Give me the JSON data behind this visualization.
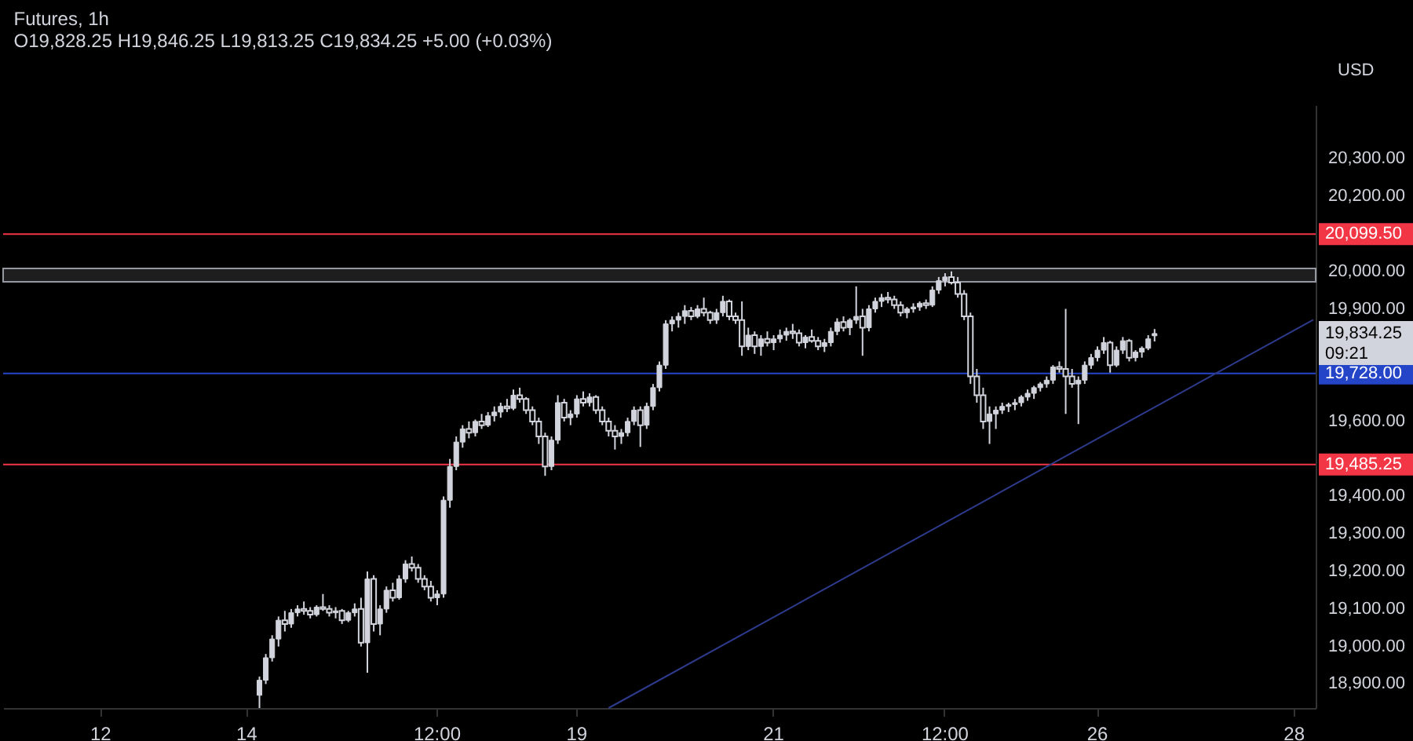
{
  "chart_data": {
    "type": "candlestick",
    "title": "Futures, 1h",
    "subtitle": "O19,828.25  H19,846.25  L19,813.25  C19,834.25  +5.00 (+0.03%)",
    "color": "#d1d4dc",
    "categories": [
      null,
      null,
      null,
      null,
      null,
      null,
      null,
      null,
      null,
      null,
      null,
      null,
      null,
      null,
      null,
      "12",
      null,
      null,
      null,
      null,
      null,
      null,
      null,
      null,
      null,
      null,
      null,
      null,
      null,
      null,
      null,
      null,
      null,
      null,
      null,
      null,
      null,
      null,
      "14",
      null,
      null,
      null,
      null,
      null,
      null,
      null,
      null,
      null,
      null,
      null,
      null,
      null,
      null,
      null,
      null,
      null,
      null,
      null,
      null,
      null,
      null,
      null,
      null,
      null,
      null,
      null,
      null,
      null,
      "12:00",
      null,
      null,
      null,
      null,
      null,
      null,
      null,
      null,
      null,
      null,
      null,
      null,
      null,
      null,
      null,
      null,
      null,
      null,
      null,
      null,
      null,
      "19",
      null,
      null,
      null,
      null,
      null,
      null,
      null,
      null,
      null,
      null,
      null,
      null,
      null,
      null,
      null,
      null,
      null,
      null,
      null,
      null,
      null,
      null,
      null,
      null,
      null,
      null,
      null,
      null,
      null,
      null,
      "21",
      null,
      null,
      null,
      null,
      null,
      null,
      null,
      null,
      null,
      null,
      null,
      null,
      null,
      null,
      null,
      null,
      null,
      null,
      null,
      null,
      null,
      null,
      null,
      null,
      null,
      null,
      "12:00",
      null,
      null,
      null,
      null,
      null,
      null,
      null,
      null,
      null,
      null,
      null,
      null,
      null,
      null,
      null,
      null,
      null,
      null,
      null,
      null,
      null,
      null,
      null,
      "26",
      null,
      null,
      null,
      null,
      null,
      null,
      null,
      null,
      null,
      null,
      null,
      null,
      null,
      null,
      null,
      null,
      null,
      null,
      null,
      null,
      null,
      null,
      null,
      null,
      null,
      null,
      null,
      null,
      null,
      null,
      "28",
      null,
      null,
      null
    ],
    "ohlc": [
      null,
      null,
      null,
      null,
      null,
      null,
      null,
      null,
      null,
      null,
      null,
      null,
      null,
      null,
      null,
      null,
      null,
      null,
      null,
      null,
      null,
      null,
      null,
      null,
      null,
      null,
      null,
      null,
      null,
      null,
      null,
      null,
      null,
      null,
      null,
      null,
      null,
      null,
      null,
      null,
      [
        18870,
        18920,
        18836,
        18910
      ],
      [
        18910,
        18980,
        18900,
        18970
      ],
      [
        18970,
        19030,
        18960,
        19020
      ],
      [
        19020,
        19080,
        19000,
        19070
      ],
      [
        19070,
        19095,
        19040,
        19060
      ],
      [
        19060,
        19100,
        19050,
        19090
      ],
      [
        19090,
        19110,
        19080,
        19100
      ],
      [
        19100,
        19120,
        19085,
        19095
      ],
      [
        19095,
        19105,
        19075,
        19085
      ],
      [
        19085,
        19110,
        19080,
        19105
      ],
      [
        19105,
        19140,
        19095,
        19100
      ],
      [
        19100,
        19110,
        19080,
        19090
      ],
      [
        19090,
        19105,
        19075,
        19095
      ],
      [
        19095,
        19100,
        19060,
        19070
      ],
      [
        19070,
        19095,
        19065,
        19090
      ],
      [
        19090,
        19115,
        19080,
        19100
      ],
      [
        19100,
        19130,
        19000,
        19010
      ],
      [
        19010,
        19200,
        18930,
        19180
      ],
      [
        19180,
        19190,
        19040,
        19060
      ],
      [
        19060,
        19110,
        19030,
        19100
      ],
      [
        19100,
        19160,
        19090,
        19150
      ],
      [
        19150,
        19170,
        19120,
        19130
      ],
      [
        19130,
        19190,
        19125,
        19180
      ],
      [
        19180,
        19230,
        19170,
        19220
      ],
      [
        19220,
        19240,
        19200,
        19210
      ],
      [
        19210,
        19220,
        19170,
        19180
      ],
      [
        19180,
        19190,
        19150,
        19160
      ],
      [
        19160,
        19175,
        19120,
        19130
      ],
      [
        19130,
        19150,
        19110,
        19140
      ],
      [
        19140,
        19400,
        19130,
        19390
      ],
      [
        19390,
        19500,
        19370,
        19480
      ],
      [
        19480,
        19560,
        19470,
        19545
      ],
      [
        19545,
        19590,
        19530,
        19580
      ],
      [
        19580,
        19600,
        19555,
        19570
      ],
      [
        19570,
        19605,
        19560,
        19600
      ],
      [
        19600,
        19620,
        19580,
        19590
      ],
      [
        19590,
        19625,
        19585,
        19615
      ],
      [
        19615,
        19640,
        19600,
        19625
      ],
      [
        19625,
        19650,
        19610,
        19640
      ],
      [
        19640,
        19660,
        19625,
        19635
      ],
      [
        19635,
        19685,
        19630,
        19670
      ],
      [
        19670,
        19690,
        19650,
        19660
      ],
      [
        19660,
        19665,
        19620,
        19630
      ],
      [
        19630,
        19640,
        19590,
        19600
      ],
      [
        19600,
        19610,
        19540,
        19560
      ],
      [
        19560,
        19570,
        19455,
        19480
      ],
      [
        19480,
        19560,
        19470,
        19550
      ],
      [
        19550,
        19670,
        19540,
        19650
      ],
      [
        19650,
        19660,
        19600,
        19610
      ],
      [
        19610,
        19630,
        19590,
        19620
      ],
      [
        19620,
        19670,
        19610,
        19660
      ],
      [
        19660,
        19680,
        19640,
        19650
      ],
      [
        19650,
        19675,
        19640,
        19665
      ],
      [
        19665,
        19670,
        19620,
        19630
      ],
      [
        19630,
        19640,
        19590,
        19600
      ],
      [
        19600,
        19610,
        19560,
        19575
      ],
      [
        19575,
        19590,
        19525,
        19560
      ],
      [
        19560,
        19580,
        19540,
        19570
      ],
      [
        19570,
        19610,
        19560,
        19600
      ],
      [
        19600,
        19640,
        19590,
        19630
      ],
      [
        19630,
        19640,
        19532,
        19590
      ],
      [
        19590,
        19650,
        19580,
        19640
      ],
      [
        19640,
        19700,
        19630,
        19690
      ],
      [
        19690,
        19760,
        19680,
        19750
      ],
      [
        19750,
        19870,
        19740,
        19860
      ],
      [
        19860,
        19880,
        19840,
        19870
      ],
      [
        19870,
        19890,
        19850,
        19880
      ],
      [
        19880,
        19910,
        19860,
        19895
      ],
      [
        19895,
        19905,
        19870,
        19880
      ],
      [
        19880,
        19910,
        19875,
        19900
      ],
      [
        19900,
        19930,
        19880,
        19890
      ],
      [
        19890,
        19895,
        19860,
        19870
      ],
      [
        19870,
        19900,
        19860,
        19890
      ],
      [
        19890,
        19935,
        19880,
        19920
      ],
      [
        19920,
        19925,
        19870,
        19880
      ],
      [
        19880,
        19890,
        19860,
        19870
      ],
      [
        19870,
        19920,
        19775,
        19800
      ],
      [
        19800,
        19850,
        19790,
        19830
      ],
      [
        19830,
        19840,
        19780,
        19800
      ],
      [
        19800,
        19830,
        19775,
        19820
      ],
      [
        19820,
        19840,
        19800,
        19810
      ],
      [
        19810,
        19830,
        19790,
        19820
      ],
      [
        19820,
        19845,
        19810,
        19830
      ],
      [
        19830,
        19850,
        19815,
        19840
      ],
      [
        19840,
        19860,
        19820,
        19835
      ],
      [
        19835,
        19845,
        19800,
        19810
      ],
      [
        19810,
        19830,
        19795,
        19825
      ],
      [
        19825,
        19845,
        19810,
        19815
      ],
      [
        19815,
        19825,
        19790,
        19800
      ],
      [
        19800,
        19820,
        19785,
        19810
      ],
      [
        19810,
        19850,
        19800,
        19840
      ],
      [
        19840,
        19875,
        19830,
        19865
      ],
      [
        19865,
        19880,
        19840,
        19850
      ],
      [
        19850,
        19875,
        19830,
        19870
      ],
      [
        19870,
        19960,
        19860,
        19880
      ],
      [
        19880,
        19900,
        19775,
        19850
      ],
      [
        19850,
        19910,
        19840,
        19900
      ],
      [
        19900,
        19930,
        19890,
        19920
      ],
      [
        19920,
        19940,
        19905,
        19930
      ],
      [
        19930,
        19945,
        19915,
        19925
      ],
      [
        19925,
        19935,
        19900,
        19910
      ],
      [
        19910,
        19920,
        19880,
        19890
      ],
      [
        19890,
        19905,
        19875,
        19900
      ],
      [
        19900,
        19915,
        19890,
        19905
      ],
      [
        19905,
        19920,
        19895,
        19915
      ],
      [
        19915,
        19925,
        19900,
        19910
      ],
      [
        19910,
        19960,
        19905,
        19950
      ],
      [
        19950,
        19985,
        19940,
        19975
      ],
      [
        19975,
        19995,
        19960,
        19985
      ],
      [
        19985,
        20000,
        19965,
        19970
      ],
      [
        19970,
        19985,
        19930,
        19940
      ],
      [
        19940,
        19950,
        19870,
        19880
      ],
      [
        19880,
        19890,
        19700,
        19720
      ],
      [
        19720,
        19740,
        19650,
        19670
      ],
      [
        19670,
        19690,
        19580,
        19600
      ],
      [
        19600,
        19640,
        19540,
        19620
      ],
      [
        19620,
        19640,
        19580,
        19630
      ],
      [
        19630,
        19650,
        19620,
        19640
      ],
      [
        19640,
        19650,
        19625,
        19645
      ],
      [
        19645,
        19660,
        19630,
        19650
      ],
      [
        19650,
        19670,
        19640,
        19665
      ],
      [
        19665,
        19685,
        19655,
        19675
      ],
      [
        19675,
        19695,
        19660,
        19690
      ],
      [
        19690,
        19705,
        19680,
        19700
      ],
      [
        19700,
        19720,
        19690,
        19710
      ],
      [
        19710,
        19750,
        19700,
        19745
      ],
      [
        19745,
        19760,
        19730,
        19740
      ],
      [
        19740,
        19900,
        19620,
        19720
      ],
      [
        19720,
        19740,
        19690,
        19700
      ],
      [
        19700,
        19720,
        19593,
        19710
      ],
      [
        19710,
        19760,
        19700,
        19750
      ],
      [
        19750,
        19780,
        19740,
        19770
      ],
      [
        19770,
        19800,
        19760,
        19790
      ],
      [
        19790,
        19825,
        19780,
        19810
      ],
      [
        19810,
        19815,
        19730,
        19750
      ],
      [
        19750,
        19800,
        19745,
        19790
      ],
      [
        19790,
        19825,
        19780,
        19815
      ],
      [
        19815,
        19820,
        19760,
        19770
      ],
      [
        19770,
        19790,
        19760,
        19785
      ],
      [
        19785,
        19800,
        19770,
        19795
      ],
      [
        19795,
        19830,
        19790,
        19820
      ],
      [
        19828.25,
        19846.25,
        19813.25,
        19834.25
      ],
      null,
      null,
      null,
      null,
      null,
      null,
      null,
      null,
      null,
      null,
      null,
      null,
      null,
      null,
      null,
      null,
      null,
      null,
      null,
      null,
      null,
      null,
      null,
      null,
      null
    ],
    "series": [
      {
        "type": "line",
        "color": "#2e3a8c",
        "values": [
          null,
          null,
          null,
          null,
          null,
          null,
          null,
          null,
          null,
          null,
          null,
          null,
          null,
          null,
          null,
          null,
          null,
          null,
          null,
          null,
          null,
          null,
          null,
          null,
          null,
          null,
          null,
          null,
          null,
          null,
          null,
          null,
          null,
          null,
          null,
          null,
          null,
          null,
          null,
          null,
          null,
          null,
          null,
          null,
          null,
          null,
          null,
          null,
          null,
          null,
          null,
          null,
          null,
          null,
          null,
          null,
          null,
          null,
          null,
          null,
          null,
          null,
          null,
          null,
          null,
          null,
          null,
          null,
          null,
          null,
          null,
          null,
          null,
          null,
          null,
          null,
          null,
          null,
          null,
          null,
          null,
          null,
          null,
          null,
          null,
          null,
          null,
          null,
          null,
          null,
          null,
          null,
          null,
          null,
          null,
          18836,
          null,
          null,
          null,
          null,
          null,
          null,
          null,
          null,
          null,
          null,
          null,
          null,
          null,
          null,
          null,
          null,
          null,
          null,
          null,
          null,
          null,
          null,
          null,
          null,
          null,
          null,
          null,
          null,
          null,
          null,
          null,
          null,
          null,
          null,
          null,
          null,
          null,
          null,
          null,
          null,
          null,
          null,
          null,
          null,
          null,
          null,
          null,
          null,
          null,
          null,
          null,
          null,
          null,
          null,
          null,
          null,
          null,
          null,
          null,
          null,
          null,
          null,
          null,
          null,
          null,
          null,
          null,
          null,
          null,
          null,
          null,
          null,
          null,
          null,
          null,
          null,
          null,
          null,
          null,
          null,
          null,
          null,
          null,
          null,
          null,
          null,
          null,
          null,
          null,
          null,
          null,
          null,
          null,
          null,
          null,
          null,
          null,
          null,
          null,
          null,
          null,
          null,
          null,
          null,
          null,
          null,
          null,
          null,
          null,
          null,
          19871
        ]
      }
    ],
    "ylim": [
      18836,
      20443
    ],
    "yticks": [
      {
        "value": 18900,
        "label": "18,900.00"
      },
      {
        "value": 19000,
        "label": "19,000.00"
      },
      {
        "value": 19100,
        "label": "19,100.00"
      },
      {
        "value": 19200,
        "label": "19,200.00"
      },
      {
        "value": 19300,
        "label": "19,300.00"
      },
      {
        "value": 19400,
        "label": "19,400.00"
      },
      {
        "value": 19600,
        "label": "19,600.00"
      },
      {
        "value": 19900,
        "label": "19,900.00"
      },
      {
        "value": 20000,
        "label": "20,000.00"
      },
      {
        "value": 20200,
        "label": "20,200.00"
      },
      {
        "value": 20300,
        "label": "20,300.00"
      }
    ],
    "ref_lines": [
      {
        "axis": "y",
        "value": 20099.5,
        "label": "20,099.50",
        "color": "#f23645"
      },
      {
        "axis": "y",
        "value": 19728,
        "label": "19,728.00",
        "color": "#2445c8"
      },
      {
        "axis": "y",
        "value": 19485.25,
        "label": "19,485.25",
        "color": "#f23645"
      }
    ],
    "bands": [
      {
        "axis": "y",
        "from": 19972,
        "to": 20008,
        "color": "#1e1e1e"
      }
    ],
    "annotations": [
      "USD",
      "19,834.25",
      "09:21"
    ]
  }
}
